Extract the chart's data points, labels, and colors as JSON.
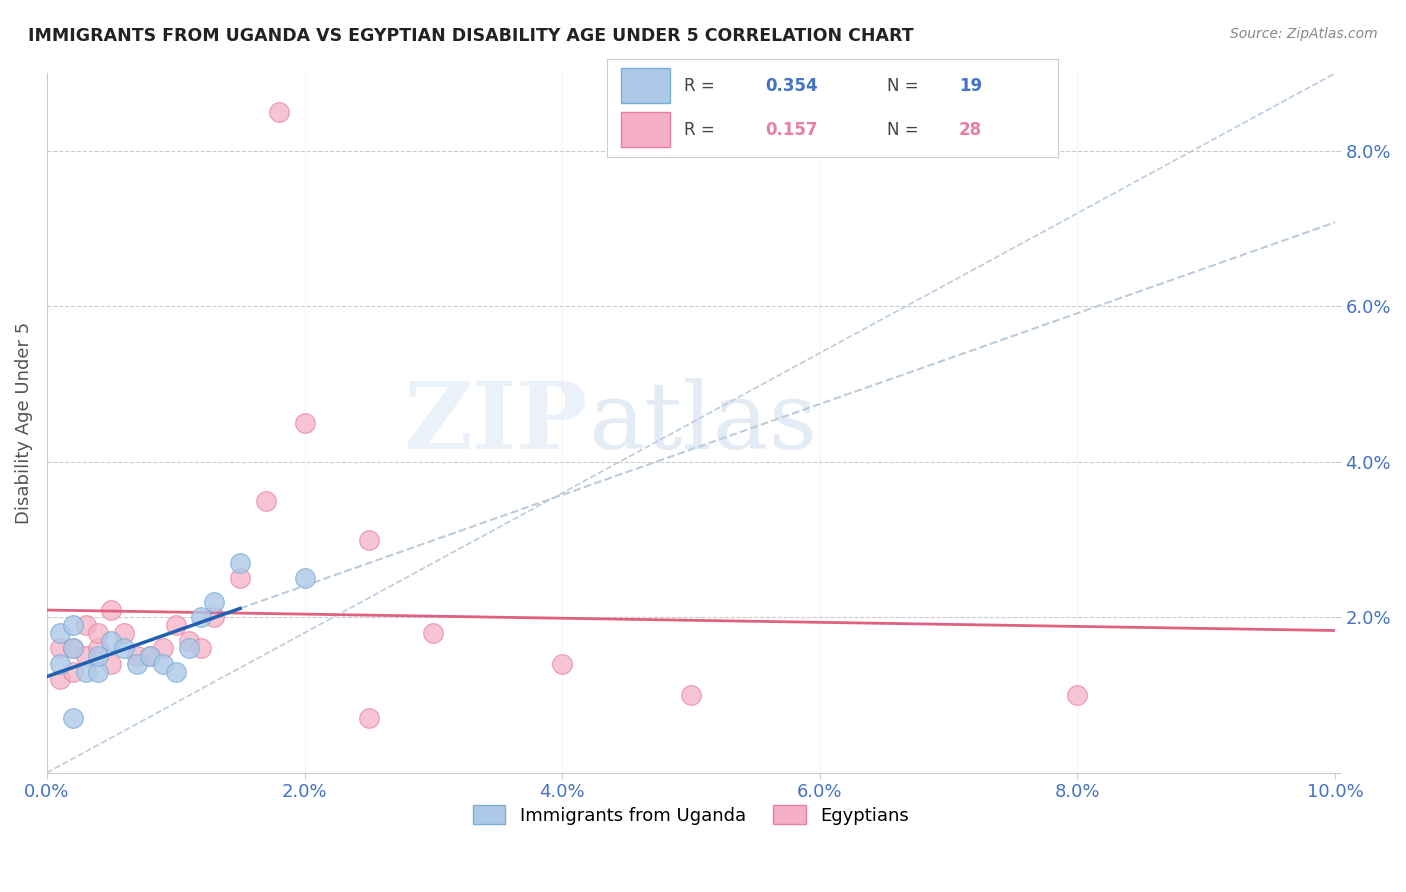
{
  "title": "IMMIGRANTS FROM UGANDA VS EGYPTIAN DISABILITY AGE UNDER 5 CORRELATION CHART",
  "source": "Source: ZipAtlas.com",
  "ylabel": "Disability Age Under 5",
  "xlim": [
    0.0,
    0.1
  ],
  "ylim": [
    0.0,
    0.09
  ],
  "uganda_color": "#adc9e8",
  "uganda_edge_color": "#7aadd4",
  "egypt_color": "#f5b0c5",
  "egypt_edge_color": "#e87fa0",
  "uganda_R": 0.354,
  "uganda_N": 19,
  "egypt_R": 0.157,
  "egypt_N": 28,
  "uganda_x": [
    0.001,
    0.001,
    0.002,
    0.002,
    0.003,
    0.004,
    0.004,
    0.005,
    0.006,
    0.007,
    0.008,
    0.009,
    0.01,
    0.011,
    0.012,
    0.013,
    0.015,
    0.02,
    0.002
  ],
  "uganda_y": [
    0.014,
    0.018,
    0.016,
    0.019,
    0.013,
    0.013,
    0.015,
    0.017,
    0.016,
    0.014,
    0.015,
    0.014,
    0.013,
    0.016,
    0.02,
    0.022,
    0.027,
    0.025,
    0.007
  ],
  "egypt_x": [
    0.001,
    0.001,
    0.002,
    0.002,
    0.003,
    0.003,
    0.004,
    0.004,
    0.005,
    0.005,
    0.006,
    0.007,
    0.008,
    0.009,
    0.01,
    0.011,
    0.012,
    0.013,
    0.015,
    0.017,
    0.02,
    0.025,
    0.03,
    0.04,
    0.05,
    0.08,
    0.018,
    0.025
  ],
  "egypt_y": [
    0.012,
    0.016,
    0.013,
    0.016,
    0.015,
    0.019,
    0.016,
    0.018,
    0.014,
    0.021,
    0.018,
    0.015,
    0.015,
    0.016,
    0.019,
    0.017,
    0.016,
    0.02,
    0.025,
    0.035,
    0.045,
    0.03,
    0.018,
    0.014,
    0.01,
    0.01,
    0.085,
    0.007
  ],
  "watermark_zip": "ZIP",
  "watermark_atlas": "atlas",
  "background_color": "#ffffff",
  "grid_color": "#cccccc",
  "tick_color": "#4472c4",
  "title_color": "#222222",
  "source_color": "#888888",
  "ylabel_color": "#555555",
  "legend_border_color": "#cccccc",
  "diag_color": "#bbccdd",
  "uganda_line_color": "#2060b0",
  "egypt_line_color": "#e06080"
}
